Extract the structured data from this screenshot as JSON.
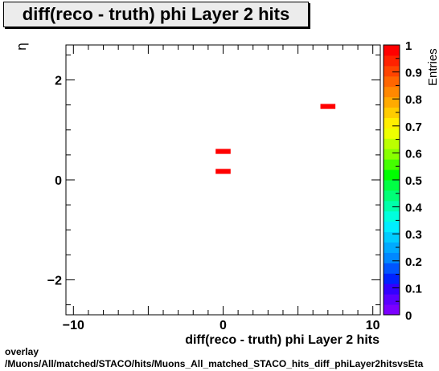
{
  "chart_data": {
    "type": "heatmap",
    "title": "diff(reco - truth) phi Layer 2 hits",
    "xlabel": "diff(reco - truth) phi Layer 2 hits",
    "ylabel": "η",
    "zlabel": "Entries",
    "xlim": [
      -10.5,
      10.5
    ],
    "ylim": [
      -2.7,
      2.7
    ],
    "zlim": [
      0,
      1
    ],
    "x_ticks": [
      -10,
      0,
      10
    ],
    "x_tick_labels": [
      "−10",
      "0",
      "10"
    ],
    "y_ticks": [
      -2,
      0,
      2
    ],
    "y_tick_labels": [
      "−2",
      "0",
      "2"
    ],
    "z_ticks": [
      0,
      0.1,
      0.2,
      0.3,
      0.4,
      0.5,
      0.6,
      0.7,
      0.8,
      0.9,
      1
    ],
    "z_tick_labels": [
      "0",
      "0.1",
      "0.2",
      "0.3",
      "0.4",
      "0.5",
      "0.6",
      "0.7",
      "0.8",
      "0.9",
      "1"
    ],
    "bin_width_x": 1.0,
    "bin_height_y": 0.1,
    "cells": [
      {
        "x": 0.0,
        "y": 0.17,
        "value": 1
      },
      {
        "x": 0.0,
        "y": 0.57,
        "value": 1
      },
      {
        "x": 7.0,
        "y": 1.47,
        "value": 1
      }
    ],
    "palette": [
      "#7b00ff",
      "#5a00ff",
      "#3300ff",
      "#0022ff",
      "#0055ff",
      "#0088ff",
      "#00aaff",
      "#00ccff",
      "#00eeff",
      "#00ffdd",
      "#00ffaa",
      "#00ff77",
      "#00ff44",
      "#00ff00",
      "#44ff00",
      "#88ff00",
      "#bbff00",
      "#eeff00",
      "#ffee00",
      "#ffcc00",
      "#ffaa00",
      "#ff8800",
      "#ff6600",
      "#ff4400",
      "#ff2200",
      "#ff0000"
    ],
    "grid": false,
    "legend": "colorbar-right"
  },
  "footer": {
    "line1": "overlay",
    "line2": "/Muons/All/matched/STACO/hits/Muons_All_matched_STACO_hits_diff_phiLayer2hitsvsEta"
  }
}
